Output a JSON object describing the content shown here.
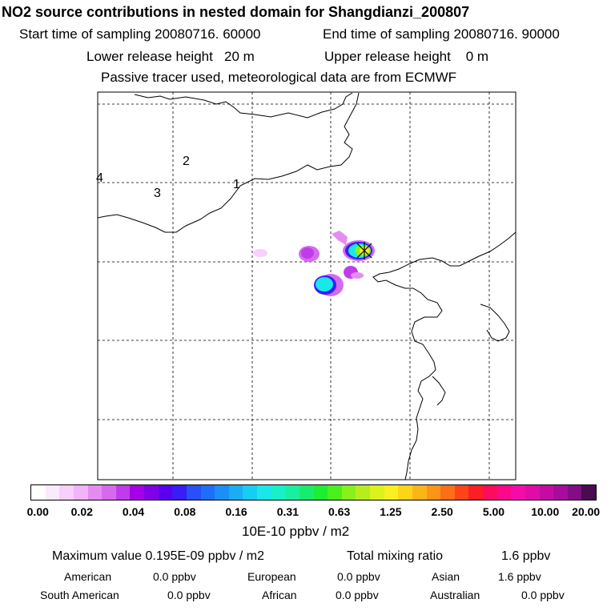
{
  "title": "NO2 source contributions in nested domain for Shangdianzi_200807",
  "header": {
    "start_label": "Start time of sampling 20080716. 60000",
    "end_label": "End time of sampling 20080716. 90000",
    "lower_label": "Lower release height   20 m",
    "upper_label": "Upper release height    0 m",
    "tracer_label": "Passive tracer used, meteorological data are from ECMWF"
  },
  "map": {
    "region_labels": [
      "1",
      "2",
      "3",
      "4"
    ]
  },
  "colorbar": {
    "tick_labels": [
      "0.00",
      "0.02",
      "0.04",
      "0.08",
      "0.16",
      "0.31",
      "0.63",
      "1.25",
      "2.50",
      "5.00",
      "10.00",
      "20.00"
    ],
    "unit": "10E-10 ppbv / m2",
    "colors": [
      "#ffffff",
      "#fbe9fd",
      "#f7d0fb",
      "#f0b4f8",
      "#e58cf2",
      "#d66aee",
      "#bf3cea",
      "#a500e6",
      "#8000e8",
      "#5a00f0",
      "#3a1cf5",
      "#2750f7",
      "#1f6ff6",
      "#1c8ff5",
      "#1aadf3",
      "#18cdf2",
      "#18e8e8",
      "#18f0c8",
      "#18f0a0",
      "#18ec70",
      "#1cee34",
      "#4af01c",
      "#88f01c",
      "#b4ee1c",
      "#dcf21c",
      "#f8f020",
      "#fcd418",
      "#fcb418",
      "#fc9418",
      "#fc6e18",
      "#fc4418",
      "#fc1e24",
      "#fc0c5c",
      "#fc0888",
      "#f40ca8",
      "#e00ca8",
      "#c40ca4",
      "#a80c9c",
      "#840c84",
      "#4a0c50"
    ]
  },
  "footer": {
    "max_label": "Maximum value  0.195E-09 ppbv / m2",
    "total_label": "Total mixing ratio",
    "total_value": "1.6 ppbv",
    "regions": [
      {
        "name": "American",
        "value": "0.0 ppbv"
      },
      {
        "name": "European",
        "value": "0.0 ppbv"
      },
      {
        "name": "Asian",
        "value": "1.6 ppbv"
      },
      {
        "name": "South American",
        "value": "0.0 ppbv"
      },
      {
        "name": "African",
        "value": "0.0 ppbv"
      },
      {
        "name": "Australian",
        "value": "0.0 ppbv"
      }
    ]
  },
  "legend_colors": {
    "receptor_marker": "#000000",
    "land_line": "#000000",
    "grid_line": "#000000"
  }
}
